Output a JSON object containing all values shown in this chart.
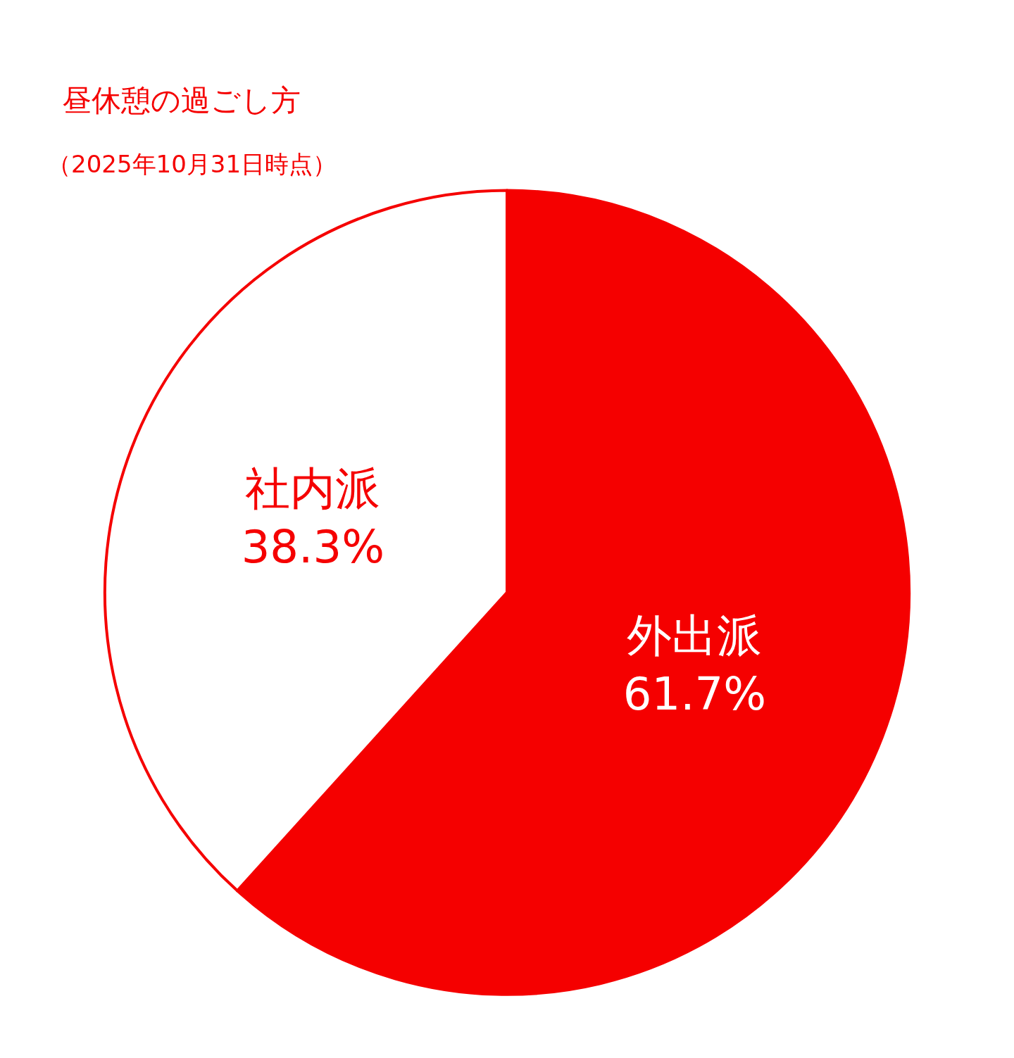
{
  "chart_data": {
    "type": "pie",
    "title": "昼休憩の過ごし方",
    "subtitle": "（2025年10月31日時点）",
    "categories": [
      "外出派",
      "社内派"
    ],
    "values": [
      61.7,
      38.3
    ],
    "value_labels": [
      "61.7%",
      "38.3%"
    ],
    "colors": [
      "#f50000",
      "#ffffff"
    ],
    "legend": false
  }
}
